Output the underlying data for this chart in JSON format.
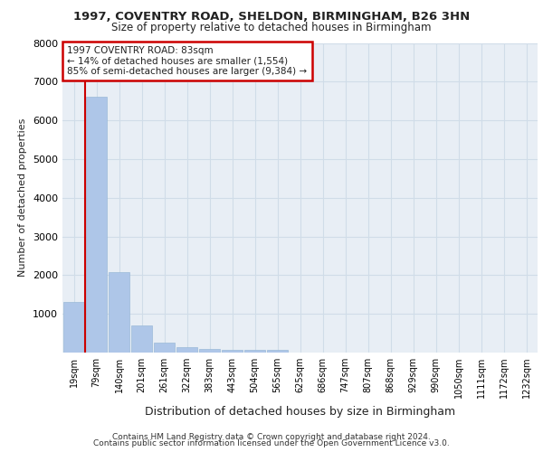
{
  "title1": "1997, COVENTRY ROAD, SHELDON, BIRMINGHAM, B26 3HN",
  "title2": "Size of property relative to detached houses in Birmingham",
  "xlabel": "Distribution of detached houses by size in Birmingham",
  "ylabel": "Number of detached properties",
  "categories": [
    "19sqm",
    "79sqm",
    "140sqm",
    "201sqm",
    "261sqm",
    "322sqm",
    "383sqm",
    "443sqm",
    "504sqm",
    "565sqm",
    "625sqm",
    "686sqm",
    "747sqm",
    "807sqm",
    "868sqm",
    "929sqm",
    "990sqm",
    "1050sqm",
    "1111sqm",
    "1172sqm",
    "1232sqm"
  ],
  "values": [
    1300,
    6600,
    2080,
    700,
    260,
    140,
    100,
    70,
    60,
    60,
    0,
    0,
    0,
    0,
    0,
    0,
    0,
    0,
    0,
    0,
    0
  ],
  "bar_color": "#aec6e8",
  "bar_edge_color": "#9bbad8",
  "annotation_title": "1997 COVENTRY ROAD: 83sqm",
  "annotation_line1": "← 14% of detached houses are smaller (1,554)",
  "annotation_line2": "85% of semi-detached houses are larger (9,384) →",
  "annotation_box_color": "#cc0000",
  "ylim": [
    0,
    8000
  ],
  "yticks": [
    0,
    1000,
    2000,
    3000,
    4000,
    5000,
    6000,
    7000,
    8000
  ],
  "grid_color": "#d0dce8",
  "footer1": "Contains HM Land Registry data © Crown copyright and database right 2024.",
  "footer2": "Contains public sector information licensed under the Open Government Licence v3.0.",
  "bg_color": "#e8eef5"
}
